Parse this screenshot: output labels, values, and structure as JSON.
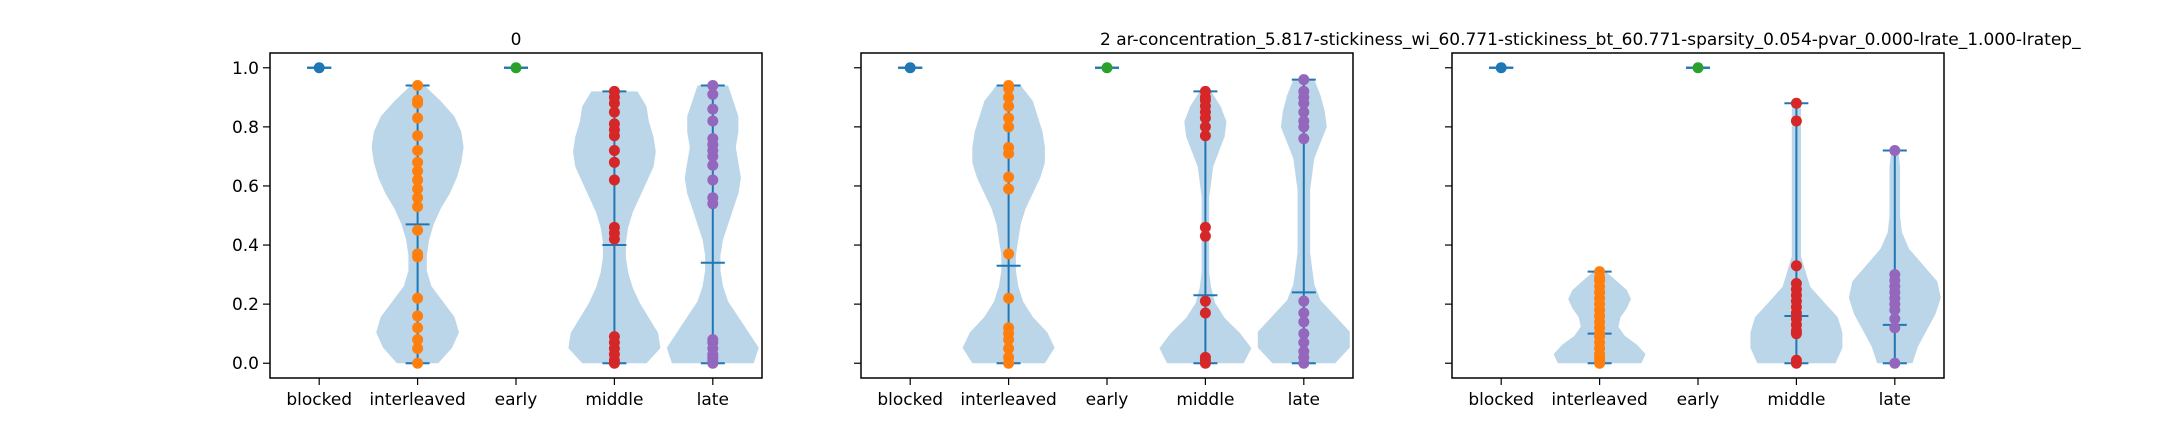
{
  "figure": {
    "title": "2    ar-concentration_5.817-stickiness_wi_60.771-stickiness_bt_60.771-sparsity_0.054-pvar_0.000-lrate_1.000-lratep_"
  },
  "colors": {
    "violin_fill": "#a6c8e2",
    "line": "#1f77b4",
    "blocked": "#1f77b4",
    "interleaved": "#ff7f0e",
    "early": "#2ca02c",
    "middle": "#d62728",
    "late": "#9467bd"
  },
  "chart_data": [
    {
      "type": "violin",
      "title": "0",
      "categories": [
        "blocked",
        "interleaved",
        "early",
        "middle",
        "late"
      ],
      "ylim": [
        -0.05,
        1.05
      ],
      "yticks": [
        "0.0",
        "0.2",
        "0.4",
        "0.6",
        "0.8",
        "1.0"
      ],
      "grid": false,
      "series": [
        {
          "category": "blocked",
          "min": 1.0,
          "median": 1.0,
          "max": 1.0,
          "density": [],
          "points": [
            1.0
          ]
        },
        {
          "category": "interleaved",
          "min": 0.0,
          "median": 0.47,
          "max": 0.94,
          "density": [
            0.09,
            0.15,
            0.18,
            0.16,
            0.11,
            0.06,
            0.04,
            0.04,
            0.05,
            0.07,
            0.1,
            0.14,
            0.17,
            0.19,
            0.2,
            0.19,
            0.16,
            0.1,
            0.03
          ],
          "points": [
            0.0,
            0.05,
            0.08,
            0.12,
            0.16,
            0.22,
            0.36,
            0.37,
            0.45,
            0.53,
            0.56,
            0.59,
            0.62,
            0.65,
            0.68,
            0.72,
            0.77,
            0.83,
            0.88,
            0.89,
            0.94
          ]
        },
        {
          "category": "early",
          "min": 1.0,
          "median": 1.0,
          "max": 1.0,
          "density": [],
          "points": [
            1.0
          ]
        },
        {
          "category": "middle",
          "min": 0.0,
          "median": 0.4,
          "max": 0.92,
          "density": [
            0.14,
            0.2,
            0.19,
            0.15,
            0.11,
            0.08,
            0.06,
            0.05,
            0.05,
            0.06,
            0.08,
            0.11,
            0.14,
            0.17,
            0.18,
            0.17,
            0.15,
            0.14,
            0.1
          ],
          "points": [
            0.0,
            0.01,
            0.03,
            0.05,
            0.07,
            0.09,
            0.42,
            0.44,
            0.46,
            0.62,
            0.68,
            0.72,
            0.77,
            0.79,
            0.81,
            0.85,
            0.88,
            0.9,
            0.92
          ]
        },
        {
          "category": "late",
          "min": 0.0,
          "median": 0.34,
          "max": 0.94,
          "density": [
            0.16,
            0.18,
            0.14,
            0.1,
            0.06,
            0.04,
            0.03,
            0.03,
            0.04,
            0.06,
            0.08,
            0.1,
            0.11,
            0.1,
            0.09,
            0.1,
            0.1,
            0.08,
            0.06
          ],
          "points": [
            0.0,
            0.01,
            0.02,
            0.03,
            0.05,
            0.07,
            0.08,
            0.54,
            0.56,
            0.62,
            0.67,
            0.7,
            0.72,
            0.74,
            0.76,
            0.82,
            0.86,
            0.91,
            0.94
          ]
        }
      ]
    },
    {
      "type": "violin",
      "title": "",
      "categories": [
        "blocked",
        "interleaved",
        "early",
        "middle",
        "late"
      ],
      "ylim": [
        -0.05,
        1.05
      ],
      "yticks": [
        "0.0",
        "0.2",
        "0.4",
        "0.6",
        "0.8",
        "1.0"
      ],
      "grid": false,
      "series": [
        {
          "category": "blocked",
          "min": 1.0,
          "median": 1.0,
          "max": 1.0,
          "density": [],
          "points": [
            1.0
          ]
        },
        {
          "category": "interleaved",
          "min": 0.0,
          "median": 0.33,
          "max": 0.94,
          "density": [
            0.15,
            0.19,
            0.16,
            0.1,
            0.06,
            0.04,
            0.03,
            0.03,
            0.04,
            0.05,
            0.07,
            0.1,
            0.13,
            0.15,
            0.15,
            0.14,
            0.12,
            0.1,
            0.05
          ],
          "points": [
            0.0,
            0.02,
            0.05,
            0.08,
            0.1,
            0.12,
            0.22,
            0.37,
            0.59,
            0.63,
            0.71,
            0.73,
            0.8,
            0.83,
            0.87,
            0.9,
            0.93,
            0.94
          ]
        },
        {
          "category": "early",
          "min": 1.0,
          "median": 1.0,
          "max": 1.0,
          "density": [],
          "points": [
            1.0
          ]
        },
        {
          "category": "middle",
          "min": 0.0,
          "median": 0.23,
          "max": 0.92,
          "density": [
            0.2,
            0.24,
            0.18,
            0.1,
            0.05,
            0.03,
            0.02,
            0.02,
            0.02,
            0.02,
            0.02,
            0.02,
            0.03,
            0.04,
            0.07,
            0.1,
            0.11,
            0.08,
            0.03
          ],
          "points": [
            0.0,
            0.01,
            0.02,
            0.17,
            0.21,
            0.43,
            0.46,
            0.77,
            0.8,
            0.83,
            0.85,
            0.87,
            0.89,
            0.9,
            0.92
          ]
        },
        {
          "category": "late",
          "min": 0.0,
          "median": 0.24,
          "max": 0.96,
          "density": [
            0.15,
            0.22,
            0.22,
            0.15,
            0.08,
            0.05,
            0.04,
            0.03,
            0.03,
            0.03,
            0.03,
            0.03,
            0.04,
            0.05,
            0.08,
            0.11,
            0.1,
            0.08,
            0.05
          ],
          "points": [
            0.0,
            0.02,
            0.04,
            0.07,
            0.1,
            0.14,
            0.17,
            0.21,
            0.76,
            0.8,
            0.82,
            0.85,
            0.88,
            0.9,
            0.92,
            0.96
          ]
        }
      ]
    },
    {
      "type": "violin",
      "title": "",
      "categories": [
        "blocked",
        "interleaved",
        "early",
        "middle",
        "late"
      ],
      "ylim": [
        -0.05,
        1.05
      ],
      "yticks": [
        "0.0",
        "0.2",
        "0.4",
        "0.6",
        "0.8",
        "1.0"
      ],
      "grid": false,
      "series": [
        {
          "category": "blocked",
          "min": 1.0,
          "median": 1.0,
          "max": 1.0,
          "density": [],
          "points": [
            1.0
          ]
        },
        {
          "category": "interleaved",
          "min": 0.0,
          "median": 0.1,
          "max": 0.31,
          "density": [
            0.2,
            0.22,
            0.18,
            0.12,
            0.09,
            0.1,
            0.13,
            0.15,
            0.13,
            0.08,
            0.03
          ],
          "points": [
            0.0,
            0.01,
            0.02,
            0.03,
            0.05,
            0.07,
            0.09,
            0.1,
            0.12,
            0.14,
            0.16,
            0.18,
            0.2,
            0.22,
            0.24,
            0.26,
            0.28,
            0.29,
            0.31
          ]
        },
        {
          "category": "early",
          "min": 1.0,
          "median": 1.0,
          "max": 1.0,
          "density": [],
          "points": [
            1.0
          ]
        },
        {
          "category": "middle",
          "min": 0.0,
          "median": 0.16,
          "max": 0.88,
          "density": [
            0.17,
            0.2,
            0.2,
            0.18,
            0.12,
            0.06,
            0.04,
            0.02,
            0.02,
            0.02,
            0.02,
            0.02,
            0.02,
            0.02,
            0.02,
            0.02,
            0.02,
            0.02
          ],
          "points": [
            0.0,
            0.01,
            0.1,
            0.11,
            0.13,
            0.15,
            0.17,
            0.19,
            0.21,
            0.23,
            0.25,
            0.27,
            0.33,
            0.82,
            0.88
          ]
        },
        {
          "category": "late",
          "min": 0.0,
          "median": 0.13,
          "max": 0.72,
          "density": [
            0.1,
            0.13,
            0.18,
            0.23,
            0.26,
            0.24,
            0.16,
            0.08,
            0.04,
            0.03,
            0.03,
            0.03,
            0.03,
            0.02
          ],
          "points": [
            0.0,
            0.12,
            0.15,
            0.18,
            0.2,
            0.22,
            0.24,
            0.26,
            0.28,
            0.3,
            0.72
          ]
        }
      ]
    }
  ]
}
